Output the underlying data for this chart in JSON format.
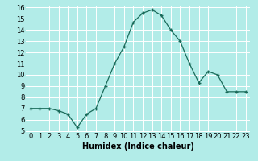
{
  "x": [
    0,
    1,
    2,
    3,
    4,
    5,
    6,
    7,
    8,
    9,
    10,
    11,
    12,
    13,
    14,
    15,
    16,
    17,
    18,
    19,
    20,
    21,
    22,
    23
  ],
  "y": [
    7.0,
    7.0,
    7.0,
    6.8,
    6.5,
    5.3,
    6.5,
    7.0,
    9.0,
    11.0,
    12.5,
    14.7,
    15.5,
    15.8,
    15.3,
    14.0,
    13.0,
    11.0,
    9.3,
    10.3,
    10.0,
    8.5,
    8.5,
    8.5
  ],
  "title": "",
  "xlabel": "Humidex (Indice chaleur)",
  "ylabel": "",
  "ylim": [
    5,
    16
  ],
  "xlim": [
    -0.5,
    23.5
  ],
  "yticks": [
    5,
    6,
    7,
    8,
    9,
    10,
    11,
    12,
    13,
    14,
    15,
    16
  ],
  "xticks": [
    0,
    1,
    2,
    3,
    4,
    5,
    6,
    7,
    8,
    9,
    10,
    11,
    12,
    13,
    14,
    15,
    16,
    17,
    18,
    19,
    20,
    21,
    22,
    23
  ],
  "line_color": "#1a6b5a",
  "marker": "+",
  "bg_color": "#b2ece8",
  "grid_color": "#ffffff",
  "label_fontsize": 7,
  "tick_fontsize": 6
}
